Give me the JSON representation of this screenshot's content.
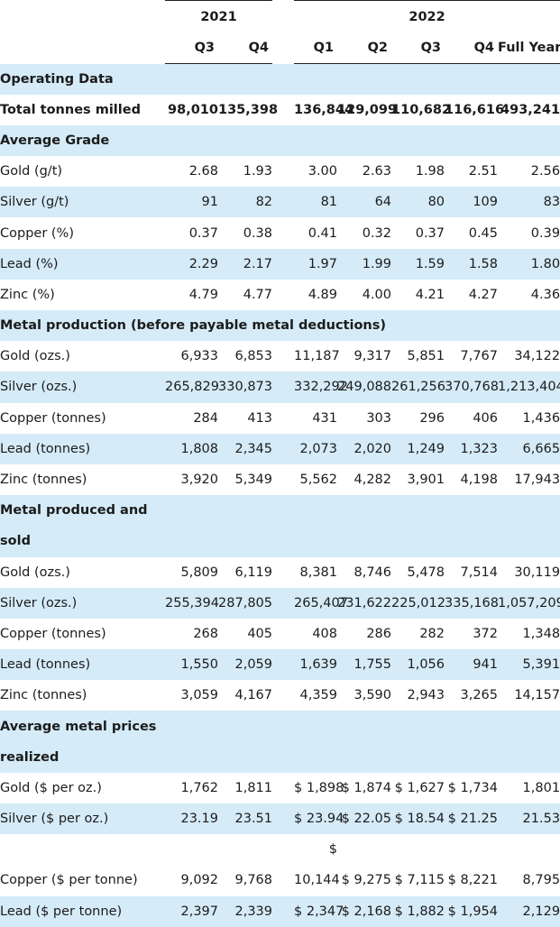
{
  "header": {
    "year_2021": "2021",
    "year_2022": "2022",
    "quarters": [
      "Q3",
      "Q4",
      "Q1",
      "Q2",
      "Q3",
      "Q4",
      "Full Year"
    ]
  },
  "rows": [
    {
      "label": "Operating Data",
      "section": true,
      "shade": true,
      "values": [
        "",
        "",
        "",
        "",
        "",
        "",
        ""
      ]
    },
    {
      "label": "Total tonnes milled",
      "section": true,
      "shade": false,
      "values": [
        "98,010",
        "135,398",
        "136,844",
        "129,099",
        "110,682",
        "116,616",
        "493,241"
      ]
    },
    {
      "label": "Average Grade",
      "section": true,
      "shade": true,
      "values": [
        "",
        "",
        "",
        "",
        "",
        "",
        ""
      ]
    },
    {
      "label": "Gold (g/t)",
      "section": false,
      "shade": false,
      "values": [
        "2.68",
        "1.93",
        "3.00",
        "2.63",
        "1.98",
        "2.51",
        "2.56"
      ]
    },
    {
      "label": "Silver (g/t)",
      "section": false,
      "shade": true,
      "values": [
        "91",
        "82",
        "81",
        "64",
        "80",
        "109",
        "83"
      ]
    },
    {
      "label": "Copper (%)",
      "section": false,
      "shade": false,
      "values": [
        "0.37",
        "0.38",
        "0.41",
        "0.32",
        "0.37",
        "0.45",
        "0.39"
      ]
    },
    {
      "label": "Lead (%)",
      "section": false,
      "shade": true,
      "values": [
        "2.29",
        "2.17",
        "1.97",
        "1.99",
        "1.59",
        "1.58",
        "1.80"
      ]
    },
    {
      "label": "Zinc (%)",
      "section": false,
      "shade": false,
      "values": [
        "4.79",
        "4.77",
        "4.89",
        "4.00",
        "4.21",
        "4.27",
        "4.36"
      ]
    },
    {
      "label": "Metal production (before payable metal deductions)",
      "section": true,
      "shade": true,
      "values": [
        "",
        "",
        "",
        "",
        "",
        "",
        ""
      ]
    },
    {
      "label": "Gold (ozs.)",
      "section": false,
      "shade": false,
      "values": [
        "6,933",
        "6,853",
        "11,187",
        "9,317",
        "5,851",
        "7,767",
        "34,122"
      ]
    },
    {
      "label": "Silver (ozs.)",
      "section": false,
      "shade": true,
      "values": [
        "265,829",
        "330,873",
        "332,292",
        "249,088",
        "261,256",
        "370,768",
        "1,213,404"
      ]
    },
    {
      "label": "Copper (tonnes)",
      "section": false,
      "shade": false,
      "values": [
        "284",
        "413",
        "431",
        "303",
        "296",
        "406",
        "1,436"
      ]
    },
    {
      "label": "Lead (tonnes)",
      "section": false,
      "shade": true,
      "values": [
        "1,808",
        "2,345",
        "2,073",
        "2,020",
        "1,249",
        "1,323",
        "6,665"
      ]
    },
    {
      "label": "Zinc (tonnes)",
      "section": false,
      "shade": false,
      "values": [
        "3,920",
        "5,349",
        "5,562",
        "4,282",
        "3,901",
        "4,198",
        "17,943"
      ]
    },
    {
      "label": "Metal produced and",
      "section": true,
      "shade": true,
      "values": [
        "",
        "",
        "",
        "",
        "",
        "",
        ""
      ]
    },
    {
      "label": "sold",
      "section": true,
      "shade": true,
      "values": [
        "",
        "",
        "",
        "",
        "",
        "",
        ""
      ]
    },
    {
      "label": "Gold (ozs.)",
      "section": false,
      "shade": false,
      "values": [
        "5,809",
        "6,119",
        "8,381",
        "8,746",
        "5,478",
        "7,514",
        "30,119"
      ]
    },
    {
      "label": "Silver (ozs.)",
      "section": false,
      "shade": true,
      "values": [
        "255,394",
        "287,805",
        "265,407",
        "231,622",
        "225,012",
        "335,168",
        "1,057,209"
      ]
    },
    {
      "label": "Copper (tonnes)",
      "section": false,
      "shade": false,
      "values": [
        "268",
        "405",
        "408",
        "286",
        "282",
        "372",
        "1,348"
      ]
    },
    {
      "label": "Lead (tonnes)",
      "section": false,
      "shade": true,
      "values": [
        "1,550",
        "2,059",
        "1,639",
        "1,755",
        "1,056",
        "941",
        "5,391"
      ]
    },
    {
      "label": "Zinc (tonnes)",
      "section": false,
      "shade": false,
      "values": [
        "3,059",
        "4,167",
        "4,359",
        "3,590",
        "2,943",
        "3,265",
        "14,157"
      ]
    },
    {
      "label": "Average metal prices",
      "section": true,
      "shade": true,
      "values": [
        "",
        "",
        "",
        "",
        "",
        "",
        ""
      ]
    },
    {
      "label": "realized",
      "section": true,
      "shade": true,
      "values": [
        "",
        "",
        "",
        "",
        "",
        "",
        ""
      ]
    },
    {
      "label": "Gold ($ per oz.)",
      "section": false,
      "shade": false,
      "values": [
        "1,762",
        "1,811",
        "$ 1,898",
        "$ 1,874",
        "$ 1,627",
        "$ 1,734",
        "1,801"
      ]
    },
    {
      "label": "Silver ($ per oz.)",
      "section": false,
      "shade": true,
      "values": [
        "23.19",
        "23.51",
        "$ 23.94",
        "$ 22.05",
        "$ 18.54",
        "$ 21.25",
        "21.53"
      ]
    },
    {
      "label": "",
      "section": false,
      "shade": false,
      "values": [
        "",
        "",
        "$",
        "",
        "",
        "",
        ""
      ]
    },
    {
      "label": "Copper ($ per tonne)",
      "section": false,
      "shade": false,
      "values": [
        "9,092",
        "9,768",
        "10,144",
        "$ 9,275",
        "$ 7,115",
        "$ 8,221",
        "8,795"
      ]
    },
    {
      "label": "Lead ($ per tonne)",
      "section": false,
      "shade": true,
      "values": [
        "2,397",
        "2,339",
        "$ 2,347",
        "$ 2,168",
        "$ 1,882",
        "$ 1,954",
        "2,129"
      ]
    }
  ]
}
